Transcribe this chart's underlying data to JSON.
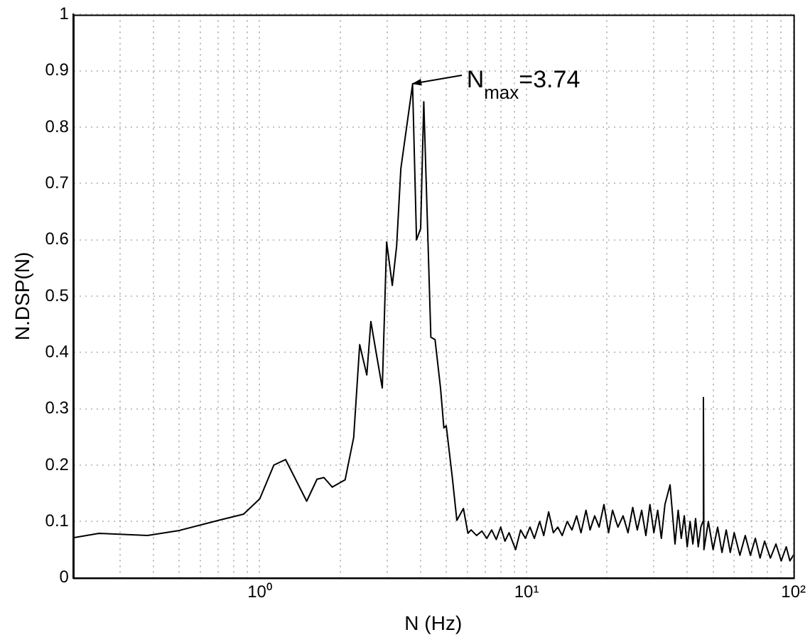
{
  "chart_data": {
    "type": "line",
    "xlabel": "N (Hz)",
    "ylabel": "N.DSP(N)",
    "log": "x",
    "grid": true,
    "marker": "none",
    "line_style": "solid",
    "xlim": [
      0.2,
      100
    ],
    "ylim": [
      0,
      1
    ],
    "xticks": [
      {
        "value": 0.2,
        "label": null
      },
      {
        "value": 0.3,
        "label": null
      },
      {
        "value": 0.4,
        "label": null
      },
      {
        "value": 0.5,
        "label": null
      },
      {
        "value": 0.6,
        "label": null
      },
      {
        "value": 0.7,
        "label": null
      },
      {
        "value": 0.8,
        "label": null
      },
      {
        "value": 0.9,
        "label": null
      },
      {
        "value": 1,
        "label": "10⁰"
      },
      {
        "value": 2,
        "label": null
      },
      {
        "value": 3,
        "label": null
      },
      {
        "value": 4,
        "label": null
      },
      {
        "value": 5,
        "label": null
      },
      {
        "value": 6,
        "label": null
      },
      {
        "value": 7,
        "label": null
      },
      {
        "value": 8,
        "label": null
      },
      {
        "value": 9,
        "label": null
      },
      {
        "value": 10,
        "label": "10¹"
      },
      {
        "value": 20,
        "label": null
      },
      {
        "value": 30,
        "label": null
      },
      {
        "value": 40,
        "label": null
      },
      {
        "value": 50,
        "label": null
      },
      {
        "value": 60,
        "label": null
      },
      {
        "value": 70,
        "label": null
      },
      {
        "value": 80,
        "label": null
      },
      {
        "value": 90,
        "label": null
      },
      {
        "value": 100,
        "label": "10²"
      }
    ],
    "yticks": [
      0,
      0.1,
      0.2,
      0.3,
      0.4,
      0.5,
      0.6,
      0.7,
      0.8,
      0.9,
      1
    ],
    "annotations": [
      {
        "text": "N$_{max}$=3.74",
        "x": 3.74,
        "y": 0.876
      }
    ],
    "series": [
      {
        "color": "#000000",
        "x": [
          0.2,
          0.25,
          0.38,
          0.5,
          0.7,
          0.87,
          1.0,
          1.13,
          1.25,
          1.5,
          1.64,
          1.74,
          1.87,
          2.09,
          2.25,
          2.37,
          2.52,
          2.61,
          2.74,
          2.88,
          2.99,
          3.14,
          3.26,
          3.38,
          3.74,
          3.87,
          4.01,
          4.12,
          4.38,
          4.54,
          4.76,
          4.9,
          5.0,
          5.27,
          5.48,
          5.8,
          6.03,
          6.2,
          6.5,
          6.8,
          7.1,
          7.4,
          7.7,
          8.0,
          8.3,
          8.6,
          9.1,
          9.5,
          9.9,
          10.3,
          10.7,
          11.2,
          11.6,
          12.1,
          12.6,
          13.1,
          13.6,
          14.2,
          14.8,
          15.4,
          16,
          16.7,
          17.3,
          18,
          18.7,
          19.5,
          20.3,
          21,
          22,
          23,
          24,
          25,
          26,
          27,
          28,
          29,
          30,
          31,
          32,
          33,
          34.5,
          36,
          37,
          38,
          39,
          40,
          41,
          42,
          43,
          44,
          45,
          45.8,
          46,
          46.2,
          48,
          50,
          52,
          54,
          56,
          58,
          60,
          63,
          66,
          69,
          72,
          75,
          78,
          82,
          86,
          90,
          94,
          97,
          100
        ],
        "values": [
          0.071,
          0.079,
          0.075,
          0.084,
          0.102,
          0.113,
          0.14,
          0.2,
          0.21,
          0.136,
          0.175,
          0.178,
          0.161,
          0.174,
          0.249,
          0.414,
          0.36,
          0.455,
          0.396,
          0.337,
          0.596,
          0.519,
          0.589,
          0.726,
          0.876,
          0.6,
          0.62,
          0.845,
          0.427,
          0.423,
          0.337,
          0.266,
          0.27,
          0.178,
          0.102,
          0.123,
          0.079,
          0.085,
          0.075,
          0.083,
          0.07,
          0.085,
          0.068,
          0.09,
          0.065,
          0.08,
          0.05,
          0.085,
          0.07,
          0.09,
          0.07,
          0.1,
          0.075,
          0.117,
          0.08,
          0.09,
          0.075,
          0.1,
          0.085,
          0.11,
          0.08,
          0.12,
          0.085,
          0.11,
          0.09,
          0.13,
          0.08,
          0.12,
          0.09,
          0.11,
          0.08,
          0.125,
          0.085,
          0.12,
          0.075,
          0.13,
          0.08,
          0.12,
          0.07,
          0.13,
          0.165,
          0.06,
          0.12,
          0.07,
          0.11,
          0.055,
          0.1,
          0.06,
          0.105,
          0.055,
          0.09,
          0.1,
          0.32,
          0.05,
          0.1,
          0.05,
          0.09,
          0.045,
          0.085,
          0.045,
          0.08,
          0.04,
          0.075,
          0.04,
          0.07,
          0.035,
          0.065,
          0.035,
          0.06,
          0.03,
          0.055,
          0.03,
          0.04
        ]
      }
    ]
  }
}
